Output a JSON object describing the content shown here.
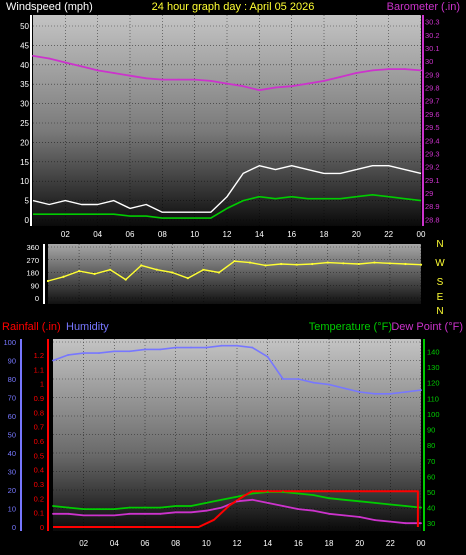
{
  "header": {
    "left_label": "Windspeed (mph)",
    "title": "24 hour graph day : April 05 2026",
    "right_label": "Barometer (.in)"
  },
  "lower_header": {
    "rain_label": "Rainfall (.in)",
    "humidity_label": "Humidity",
    "temp_label": "Temperature (°F)",
    "dew_label": "Dew Point (°F)"
  },
  "colors": {
    "windspeed": "#ffffff",
    "wind_average": "#00cc00",
    "barometer": "#cc33cc",
    "direction": "#ffff33",
    "rainfall": "#ff0000",
    "humidity": "#7777ff",
    "temperature": "#00cc00",
    "dewpoint": "#cc33cc"
  },
  "chart_data": [
    {
      "id": "wind_baro",
      "type": "line",
      "x_ticks": [
        "02",
        "04",
        "06",
        "08",
        "10",
        "12",
        "14",
        "16",
        "18",
        "20",
        "22",
        "00"
      ],
      "x_range": [
        0,
        24
      ],
      "y_left": {
        "label": "Windspeed (mph)",
        "ticks": [
          "0",
          "5",
          "10",
          "15",
          "20",
          "25",
          "30",
          "35",
          "40",
          "45",
          "50"
        ],
        "range": [
          0,
          50
        ]
      },
      "y_right": {
        "label": "Barometer (.in)",
        "ticks": [
          "28.8",
          "28.9",
          "29",
          "29.1",
          "29.2",
          "29.3",
          "29.4",
          "29.5",
          "29.6",
          "29.7",
          "29.8",
          "29.9",
          "30",
          "30.1",
          "30.2",
          "30.3"
        ],
        "range": [
          28.75,
          30.35
        ]
      },
      "series": [
        {
          "name": "Barometer",
          "axis": "right",
          "x": [
            0,
            1,
            2,
            3,
            4,
            5,
            6,
            7,
            8,
            9,
            10,
            11,
            12,
            13,
            14,
            15,
            16,
            17,
            18,
            19,
            20,
            21,
            22,
            23,
            24
          ],
          "values": [
            30.04,
            30.02,
            29.99,
            29.96,
            29.93,
            29.91,
            29.89,
            29.87,
            29.86,
            29.86,
            29.86,
            29.85,
            29.83,
            29.81,
            29.78,
            29.8,
            29.81,
            29.83,
            29.85,
            29.88,
            29.91,
            29.93,
            29.94,
            29.94,
            29.93
          ]
        },
        {
          "axis": "left",
          "x": [
            0,
            1,
            2,
            3,
            4,
            5,
            6,
            7,
            8,
            9,
            10,
            11,
            12,
            13,
            14,
            15,
            16,
            17,
            18,
            19,
            20,
            21,
            22,
            23,
            24
          ],
          "values": [
            5,
            4,
            5,
            4,
            4,
            5,
            3,
            4,
            2,
            2,
            2,
            2,
            6,
            12,
            14,
            13,
            14,
            13,
            12,
            12,
            13,
            14,
            14,
            13,
            12
          ]
        },
        {
          "axis": "left",
          "x": [
            0,
            1,
            2,
            3,
            4,
            5,
            6,
            7,
            8,
            9,
            10,
            11,
            12,
            13,
            14,
            15,
            16,
            17,
            18,
            19,
            20,
            21,
            22,
            23,
            24
          ],
          "values": [
            1.5,
            1.5,
            1.5,
            1.5,
            1.5,
            1.5,
            1,
            1,
            0.5,
            0.5,
            0.5,
            0.5,
            3,
            5,
            6,
            5.5,
            6,
            5.5,
            5.5,
            5.5,
            6,
            6.5,
            6,
            5.5,
            5
          ]
        }
      ]
    },
    {
      "id": "direction",
      "type": "scatter",
      "x_ticks": [
        "02",
        "04",
        "06",
        "08",
        "10",
        "12",
        "14",
        "16",
        "18",
        "20",
        "22",
        "00"
      ],
      "x_range": [
        0,
        24
      ],
      "y_left": {
        "ticks": [
          "0",
          "90",
          "180",
          "270",
          "360"
        ],
        "range": [
          0,
          360
        ]
      },
      "y_right_letters": [
        "N",
        "W",
        "S",
        "E",
        "N"
      ],
      "series": [
        {
          "name": "Wind direction",
          "x": [
            0,
            1,
            2,
            3,
            4,
            5,
            6,
            7,
            8,
            9,
            10,
            11,
            12,
            13,
            14,
            15,
            16,
            17,
            18,
            19,
            20,
            21,
            22,
            23,
            24
          ],
          "values": [
            120,
            150,
            190,
            170,
            200,
            130,
            230,
            200,
            180,
            140,
            200,
            180,
            260,
            250,
            230,
            240,
            235,
            240,
            250,
            245,
            240,
            250,
            245,
            240,
            235
          ]
        }
      ]
    },
    {
      "id": "rain_hum_temp",
      "type": "line",
      "x_ticks": [
        "02",
        "04",
        "06",
        "08",
        "10",
        "12",
        "14",
        "16",
        "18",
        "20",
        "22",
        "00"
      ],
      "x_range": [
        0,
        24
      ],
      "y_humidity": {
        "ticks": [
          "0",
          "10",
          "20",
          "30",
          "40",
          "50",
          "60",
          "70",
          "80",
          "90",
          "100"
        ],
        "range": [
          0,
          100
        ]
      },
      "y_rain": {
        "ticks": [
          "0",
          "0.1",
          "0.2",
          "0.3",
          "0.4",
          "0.5",
          "0.6",
          "0.7",
          "0.8",
          "0.9",
          "1",
          "1.1",
          "1.2"
        ],
        "range": [
          0,
          1.2
        ]
      },
      "y_temp": {
        "ticks": [
          "30",
          "40",
          "50",
          "60",
          "70",
          "80",
          "90",
          "100",
          "110",
          "120",
          "130",
          "140"
        ],
        "range": [
          25,
          148
        ]
      },
      "series": [
        {
          "name": "Humidity",
          "axis": "humidity",
          "x": [
            0,
            1,
            2,
            3,
            4,
            5,
            6,
            7,
            8,
            9,
            10,
            11,
            12,
            13,
            14,
            15,
            16,
            17,
            18,
            19,
            20,
            21,
            22,
            23,
            24
          ],
          "values": [
            90,
            93,
            94,
            94,
            95,
            95,
            96,
            96,
            97,
            97,
            97,
            98,
            98,
            97,
            92,
            80,
            80,
            78,
            77,
            75,
            73,
            72,
            72,
            73,
            74
          ]
        },
        {
          "name": "Rainfall",
          "axis": "rain",
          "x": [
            0,
            9.5,
            10.5,
            11.5,
            12.5,
            13,
            14,
            16,
            18,
            20,
            22,
            23.8,
            23.8
          ],
          "values": [
            0,
            0,
            0.05,
            0.15,
            0.22,
            0.25,
            0.25,
            0.25,
            0.25,
            0.25,
            0.25,
            0.25,
            0
          ]
        },
        {
          "name": "Temperature",
          "axis": "temp",
          "x": [
            0,
            1,
            2,
            3,
            4,
            5,
            6,
            7,
            8,
            9,
            10,
            11,
            12,
            13,
            14,
            15,
            16,
            17,
            18,
            19,
            20,
            21,
            22,
            23,
            24
          ],
          "values": [
            41,
            40,
            39,
            39,
            39,
            40,
            40,
            40,
            41,
            41,
            43,
            45,
            47,
            49,
            50,
            50,
            49,
            48,
            46,
            45,
            44,
            43,
            42,
            41,
            40
          ]
        },
        {
          "name": "Dew Point",
          "axis": "temp",
          "x": [
            0,
            1,
            2,
            3,
            4,
            5,
            6,
            7,
            8,
            9,
            10,
            11,
            12,
            13,
            14,
            15,
            16,
            17,
            18,
            19,
            20,
            21,
            22,
            23,
            24
          ],
          "values": [
            36,
            36,
            35,
            35,
            35,
            36,
            36,
            36,
            37,
            37,
            38,
            40,
            44,
            45,
            43,
            41,
            39,
            38,
            36,
            35,
            34,
            32,
            31,
            30,
            30
          ]
        }
      ]
    }
  ]
}
